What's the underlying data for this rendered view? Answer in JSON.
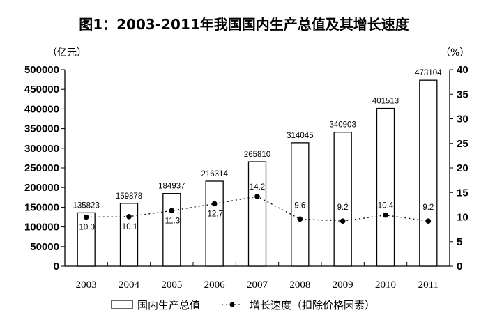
{
  "chart_data": {
    "type": "bar+line",
    "title": "图1：2003-2011年我国国内生产总值及其增长速度",
    "left_unit": "（亿元）",
    "right_unit": "（%）",
    "categories": [
      "2003",
      "2004",
      "2005",
      "2006",
      "2007",
      "2008",
      "2009",
      "2010",
      "2011"
    ],
    "series": [
      {
        "name": "国内生产总值",
        "type": "bar",
        "axis": "left",
        "values": [
          135823,
          159878,
          184937,
          216314,
          265810,
          314045,
          340903,
          401513,
          473104
        ],
        "labels": [
          "135823",
          "159878",
          "184937",
          "216314",
          "265810",
          "314045",
          "340903",
          "401513",
          "473104"
        ]
      },
      {
        "name": "增长速度（扣除价格因素）",
        "type": "line",
        "axis": "right",
        "style": "dotted with filled circle markers",
        "values": [
          10.0,
          10.1,
          11.3,
          12.7,
          14.2,
          9.6,
          9.2,
          10.4,
          9.2
        ],
        "labels": [
          "10.0",
          "10.1",
          "11.3",
          "12.7",
          "14.2",
          "9.6",
          "9.2",
          "10.4",
          "9.2"
        ]
      }
    ],
    "left_axis": {
      "range": [
        0,
        500000
      ],
      "ticks": [
        "0",
        "50000",
        "100000",
        "150000",
        "200000",
        "250000",
        "300000",
        "350000",
        "400000",
        "450000",
        "500000"
      ]
    },
    "right_axis": {
      "range": [
        0,
        40
      ],
      "ticks": [
        "0",
        "5",
        "10",
        "15",
        "20",
        "25",
        "30",
        "35",
        "40"
      ]
    },
    "grid": false,
    "legend_placement": "bottom",
    "colors": {
      "bar_fill": "#ffffff",
      "bar_stroke": "#000000",
      "line": "#000000"
    }
  }
}
